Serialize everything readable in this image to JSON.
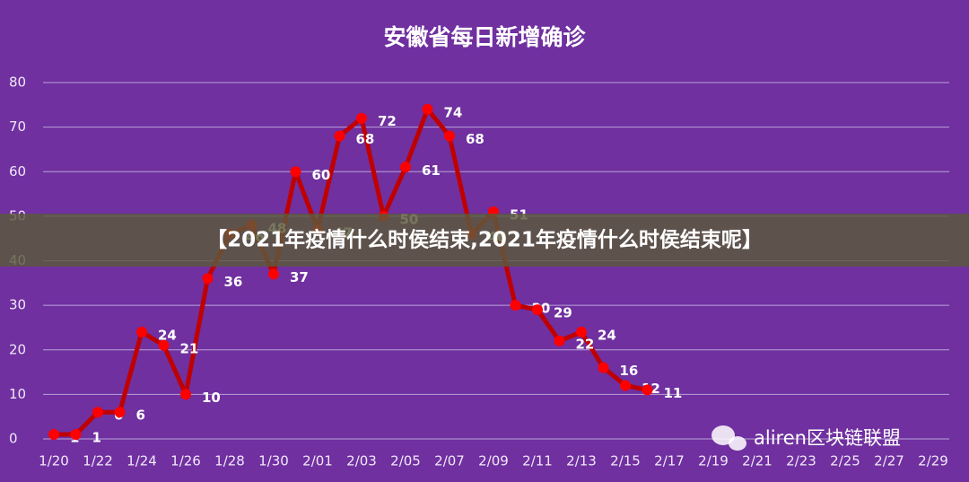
{
  "chart_data": {
    "type": "line",
    "title": "安徽省每日新增确诊",
    "categories": [
      "1/20",
      null,
      "1/22",
      null,
      "1/24",
      null,
      "1/26",
      null,
      "1/28",
      null,
      "1/30",
      null,
      "2/01",
      null,
      "2/03",
      null,
      "2/05",
      null,
      "2/07",
      null,
      "2/09",
      null,
      "2/11",
      null,
      "2/13",
      null,
      "2/15",
      null,
      "2/17",
      null,
      "2/19",
      null,
      "2/21",
      null,
      "2/23",
      null,
      "2/25",
      null,
      "2/27",
      null,
      "2/29"
    ],
    "series": [
      {
        "name": "安徽省每日新增确诊",
        "color": "#c00000",
        "marker_color": "#ff0000",
        "values": [
          1,
          1,
          6,
          6,
          24,
          21,
          10,
          36,
          46,
          48,
          37,
          60,
          47,
          68,
          72,
          50,
          61,
          74,
          68,
          46,
          51,
          30,
          29,
          22,
          24,
          16,
          12,
          11,
          null,
          null,
          null,
          null,
          null,
          null,
          null,
          null,
          null,
          null,
          null,
          null,
          null
        ]
      }
    ],
    "ylim": [
      0,
      80
    ],
    "yticks": [
      0,
      10,
      20,
      30,
      40,
      50,
      60,
      70,
      80
    ],
    "grid": true
  },
  "banner": "【2021年疫情什么时侯结束,2021年疫情什么时侯结束呢】",
  "watermark": "aliren区块链联盟"
}
